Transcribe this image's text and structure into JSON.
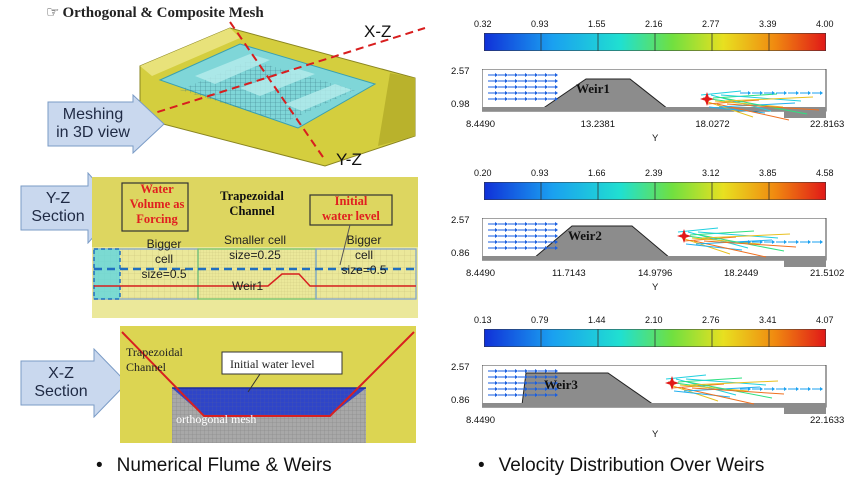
{
  "title": {
    "icon": "hand-pointing-icon",
    "text": "Orthogonal & Composite Mesh"
  },
  "mesh3d": {
    "label_xz": "X-Z",
    "label_yz": "Y-Z",
    "arrow_text": [
      "Meshing",
      "in 3D view"
    ]
  },
  "yz_section": {
    "arrow_text": [
      "Y-Z",
      "Section"
    ],
    "water_volume": [
      "Water",
      "Volume as",
      "Forcing"
    ],
    "trap_title": [
      "Trapezoidal",
      "Channel"
    ],
    "initial_level": [
      "Initial",
      "water level"
    ],
    "bigger_left": [
      "Bigger",
      "cell",
      "size=0.5"
    ],
    "smaller": [
      "Smaller cell",
      "size=0.25"
    ],
    "bigger_right": [
      "Bigger",
      "cell",
      "size=0.5"
    ],
    "weir": "Weir1"
  },
  "xz_section": {
    "arrow_text": [
      "X-Z",
      "Section"
    ],
    "trap_label": [
      "Trapezoidal",
      "Channel"
    ],
    "initial_level": "Initial water level",
    "mesh_label": "orthogonal mesh"
  },
  "captions": {
    "left": "Numerical Flume & Weirs",
    "right": "Velocity Distribution Over Weirs"
  },
  "colors": {
    "wall": "#d9d345",
    "water": "#2f45c8",
    "red": "#e02020",
    "arrow_fill": "#c9d8ee"
  },
  "panels": [
    {
      "weir": "Weir1",
      "cbar": [
        "0.32",
        "0.93",
        "1.55",
        "2.16",
        "2.77",
        "3.39",
        "4.00"
      ],
      "y_top": "2.57",
      "y_bot": "0.98",
      "x_ticks": [
        "8.4490",
        "13.2381",
        "18.0272",
        "22.8163"
      ],
      "x_label": "Y"
    },
    {
      "weir": "Weir2",
      "cbar": [
        "0.20",
        "0.93",
        "1.66",
        "2.39",
        "3.12",
        "3.85",
        "4.58"
      ],
      "y_top": "2.57",
      "y_bot": "0.86",
      "x_ticks": [
        "8.4490",
        "11.7143",
        "14.9796",
        "18.2449",
        "21.5102"
      ],
      "x_label": "Y"
    },
    {
      "weir": "Weir3",
      "cbar": [
        "0.13",
        "0.79",
        "1.44",
        "2.10",
        "2.76",
        "3.41",
        "4.07"
      ],
      "y_top": "2.57",
      "y_bot": "0.86",
      "x_ticks": [
        "8.4490",
        "22.1633"
      ],
      "x_label": "Y"
    }
  ]
}
